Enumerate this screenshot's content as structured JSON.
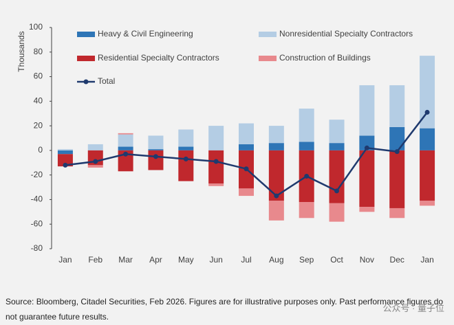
{
  "chart_data": {
    "type": "bar",
    "y_label": "Thousands",
    "categories": [
      "Jan",
      "Feb",
      "Mar",
      "Apr",
      "May",
      "Jun",
      "Jul",
      "Aug",
      "Sep",
      "Oct",
      "Nov",
      "Dec",
      "Jan"
    ],
    "series": [
      {
        "name": "Heavy & Civil Engineering",
        "color": "#2e75b6",
        "values": [
          -3,
          0,
          3,
          1,
          3,
          0,
          5,
          6,
          7,
          6,
          12,
          19,
          18
        ]
      },
      {
        "name": "Nonresidential Specialty Contractors",
        "color": "#b4cde4",
        "values": [
          1,
          5,
          10,
          11,
          14,
          20,
          17,
          14,
          27,
          19,
          41,
          34,
          59
        ]
      },
      {
        "name": "Residential Specialty Contractors",
        "color": "#c0282d",
        "values": [
          -10,
          -12,
          -17,
          -16,
          -25,
          -27,
          -31,
          -41,
          -42,
          -43,
          -46,
          -47,
          -41
        ]
      },
      {
        "name": "Construction of Buildings",
        "color": "#e8898d",
        "values": [
          0,
          -2,
          1,
          0,
          0,
          -2,
          -6,
          -16,
          -13,
          -15,
          -4,
          -8,
          -4
        ]
      }
    ],
    "line_series": {
      "name": "Total",
      "color": "#1f3a6e",
      "values": [
        -12,
        -9,
        -3,
        -5,
        -7,
        -9,
        -15,
        -37,
        -21,
        -33,
        2,
        -1,
        31
      ]
    },
    "ylim": [
      -80,
      100
    ],
    "yticks": [
      -80,
      -60,
      -40,
      -20,
      0,
      20,
      40,
      60,
      80,
      100
    ],
    "grid": false,
    "source": "Source: Bloomberg, Citadel Securities, Feb 2026. Figures are for illustrative purposes only. Past performance figures do not guarantee future results.",
    "watermark": "公众号 · 量子位"
  }
}
